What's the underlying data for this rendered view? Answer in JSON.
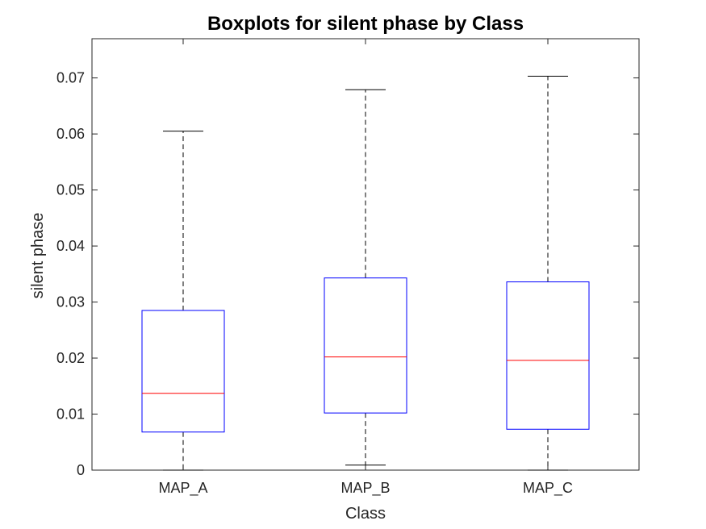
{
  "chart_data": {
    "type": "boxplot",
    "title": "Boxplots for silent phase by Class",
    "xlabel": "Class",
    "ylabel": "silent phase",
    "ylim": [
      0,
      0.077
    ],
    "yticks": [
      0,
      0.01,
      0.02,
      0.03,
      0.04,
      0.05,
      0.06,
      0.07
    ],
    "ytick_labels": [
      "0",
      "0.01",
      "0.02",
      "0.03",
      "0.04",
      "0.05",
      "0.06",
      "0.07"
    ],
    "grid": false,
    "categories": [
      "MAP_A",
      "MAP_B",
      "MAP_C"
    ],
    "boxes": [
      {
        "category": "MAP_A",
        "whisker_low": 0.0,
        "q1": 0.0068,
        "median": 0.0137,
        "q3": 0.0285,
        "whisker_high": 0.0605
      },
      {
        "category": "MAP_B",
        "whisker_low": 0.0009,
        "q1": 0.0102,
        "median": 0.0202,
        "q3": 0.0343,
        "whisker_high": 0.0679
      },
      {
        "category": "MAP_C",
        "whisker_low": 0.0,
        "q1": 0.0073,
        "median": 0.0196,
        "q3": 0.0336,
        "whisker_high": 0.0703
      }
    ],
    "colors": {
      "box": "#0000ff",
      "median": "#ff0000",
      "whisker": "#000000",
      "axis": "#262626"
    }
  }
}
